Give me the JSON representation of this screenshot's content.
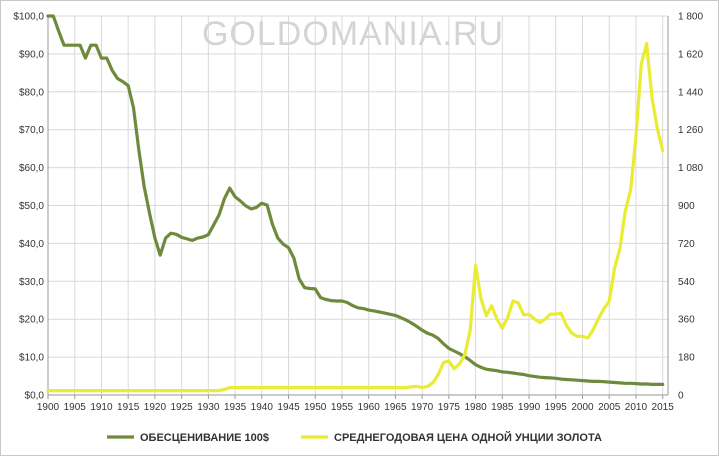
{
  "watermark": "GOLDOMANIA.RU",
  "colors": {
    "green_series": "#6f8a3c",
    "yellow_series": "#e9ec32",
    "grid": "#d9d9d9",
    "axis": "#9a9a9a"
  },
  "chart_data": {
    "type": "line",
    "title": "",
    "xlabel": "",
    "ylabel_left": "",
    "ylabel_right": "",
    "xlim": [
      1900,
      2016
    ],
    "ylim_left": [
      0,
      100
    ],
    "ylim_right": [
      0,
      1800
    ],
    "grid": true,
    "legend_position": "bottom",
    "x_ticks": [
      "1900",
      "1905",
      "1910",
      "1915",
      "1920",
      "1925",
      "1930",
      "1935",
      "1940",
      "1945",
      "1950",
      "1955",
      "1960",
      "1965",
      "1970",
      "1975",
      "1980",
      "1985",
      "1990",
      "1995",
      "2000",
      "2005",
      "2010",
      "2015"
    ],
    "y_left_ticks": [
      "$0,0",
      "$10,0",
      "$20,0",
      "$30,0",
      "$40,0",
      "$50,0",
      "$60,0",
      "$70,0",
      "$80,0",
      "$90,0",
      "$100,0"
    ],
    "y_right_ticks": [
      "0",
      "180",
      "360",
      "540",
      "720",
      "900",
      "1 080",
      "1 260",
      "1 440",
      "1 620",
      "1 800"
    ],
    "series": [
      {
        "name": "ОБЕСЦЕНИВАНИЕ  100$",
        "axis": "left",
        "color": "#6f8a3c",
        "x": [
          1900,
          1901,
          1902,
          1903,
          1904,
          1905,
          1906,
          1907,
          1908,
          1909,
          1910,
          1911,
          1912,
          1913,
          1914,
          1915,
          1916,
          1917,
          1918,
          1919,
          1920,
          1921,
          1922,
          1923,
          1924,
          1925,
          1926,
          1927,
          1928,
          1929,
          1930,
          1931,
          1932,
          1933,
          1934,
          1935,
          1936,
          1937,
          1938,
          1939,
          1940,
          1941,
          1942,
          1943,
          1944,
          1945,
          1946,
          1947,
          1948,
          1949,
          1950,
          1951,
          1952,
          1953,
          1954,
          1955,
          1956,
          1957,
          1958,
          1959,
          1960,
          1961,
          1962,
          1963,
          1964,
          1965,
          1966,
          1967,
          1968,
          1969,
          1970,
          1971,
          1972,
          1973,
          1974,
          1975,
          1976,
          1977,
          1978,
          1979,
          1980,
          1981,
          1982,
          1983,
          1984,
          1985,
          1986,
          1987,
          1988,
          1989,
          1990,
          1991,
          1992,
          1993,
          1994,
          1995,
          1996,
          1997,
          1998,
          1999,
          2000,
          2001,
          2002,
          2003,
          2004,
          2005,
          2006,
          2007,
          2008,
          2009,
          2010,
          2011,
          2012,
          2013,
          2014,
          2015
        ],
        "values": [
          100,
          100,
          96,
          92.3,
          92.3,
          92.3,
          92.3,
          88.9,
          92.3,
          92.3,
          88.9,
          88.9,
          85.7,
          83.5,
          82.7,
          81.6,
          75.8,
          64.5,
          54.9,
          47.9,
          41.4,
          36.9,
          41.4,
          42.7,
          42.4,
          41.6,
          41.2,
          40.8,
          41.4,
          41.7,
          42.3,
          44.9,
          47.5,
          51.8,
          54.6,
          52.3,
          51.2,
          49.9,
          49.1,
          49.5,
          50.6,
          50.1,
          45.0,
          41.4,
          39.8,
          38.9,
          36.1,
          30.6,
          28.3,
          28.1,
          28.0,
          25.7,
          25.2,
          24.9,
          24.8,
          24.8,
          24.4,
          23.6,
          23.0,
          22.8,
          22.4,
          22.2,
          21.9,
          21.6,
          21.3,
          21.0,
          20.4,
          19.8,
          19.0,
          18.1,
          17.1,
          16.3,
          15.8,
          14.9,
          13.5,
          12.3,
          11.6,
          10.9,
          10.1,
          9.1,
          8.0,
          7.3,
          6.8,
          6.6,
          6.4,
          6.1,
          6.0,
          5.8,
          5.6,
          5.4,
          5.1,
          4.9,
          4.7,
          4.6,
          4.5,
          4.4,
          4.2,
          4.1,
          4.0,
          3.9,
          3.8,
          3.7,
          3.6,
          3.6,
          3.5,
          3.4,
          3.3,
          3.2,
          3.1,
          3.1,
          3.0,
          2.9,
          2.9,
          2.8,
          2.8,
          2.8
        ],
        "legend_label": "ОБЕСЦЕНИВАНИЕ  100$"
      },
      {
        "name": "СРЕДНЕГОДОВАЯ  ЦЕНА ОДНОЙ УНЦИИ ЗОЛОТА",
        "axis": "right",
        "color": "#e9ec32",
        "x": [
          1900,
          1910,
          1920,
          1930,
          1932,
          1933,
          1934,
          1940,
          1950,
          1960,
          1967,
          1968,
          1969,
          1970,
          1971,
          1972,
          1973,
          1974,
          1975,
          1976,
          1977,
          1978,
          1979,
          1980,
          1981,
          1982,
          1983,
          1984,
          1985,
          1986,
          1987,
          1988,
          1989,
          1990,
          1991,
          1992,
          1993,
          1994,
          1995,
          1996,
          1997,
          1998,
          1999,
          2000,
          2001,
          2002,
          2003,
          2004,
          2005,
          2006,
          2007,
          2008,
          2009,
          2010,
          2011,
          2012,
          2013,
          2014,
          2015
        ],
        "values": [
          20.67,
          20.67,
          20.67,
          20.67,
          20.67,
          26,
          35,
          35,
          35,
          35,
          35,
          39,
          41,
          36,
          41,
          58,
          97,
          154,
          161,
          125,
          148,
          193,
          307,
          615,
          460,
          376,
          424,
          361,
          317,
          368,
          447,
          437,
          381,
          383,
          362,
          344,
          360,
          384,
          384,
          388,
          331,
          294,
          279,
          279,
          271,
          310,
          363,
          410,
          445,
          603,
          695,
          872,
          972,
          1225,
          1572,
          1669,
          1411,
          1266,
          1160
        ],
        "legend_label": "СРЕДНЕГОДОВАЯ  ЦЕНА ОДНОЙ УНЦИИ ЗОЛОТА"
      }
    ]
  }
}
